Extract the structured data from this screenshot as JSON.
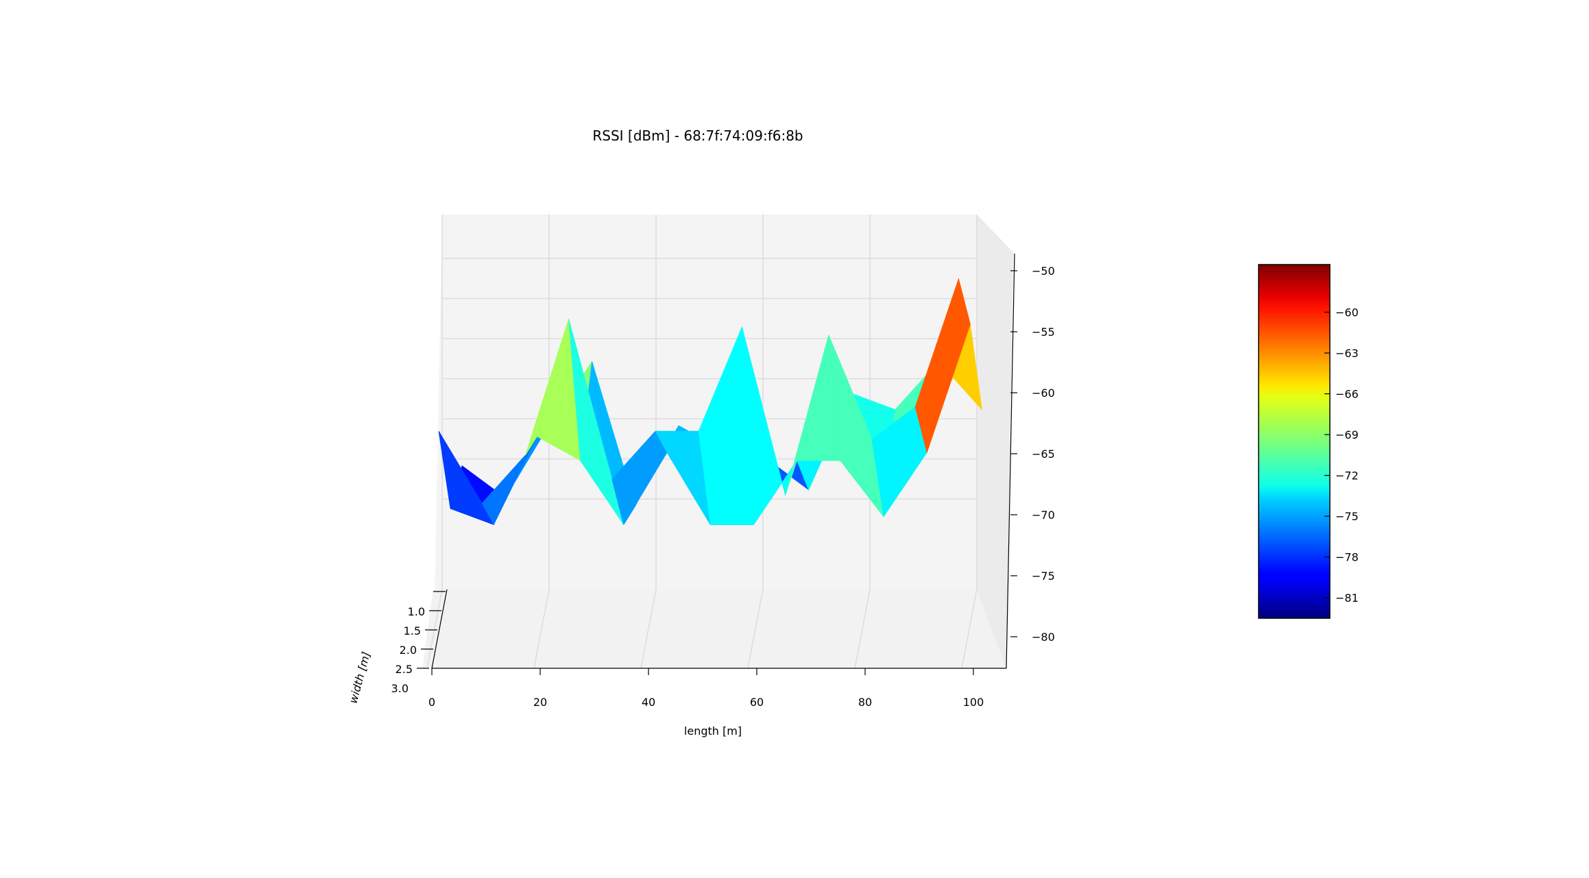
{
  "chart_data": {
    "type": "surface3d",
    "title": "RSSI [dBm] - 68:7f:74:09:f6:8b",
    "xlabel": "length [m]",
    "ylabel": "width [m]",
    "zlabel": "",
    "x": [
      0,
      8,
      16,
      24,
      32,
      40,
      48,
      56,
      64,
      72,
      80,
      88,
      96
    ],
    "y_front": 3.0,
    "y_back": 1.0,
    "series": [
      {
        "values": [
          -70,
          -79,
          -73,
          -56,
          -76,
          -70,
          -70,
          -57,
          -78,
          -58,
          -71,
          -67,
          -51
        ]
      },
      {
        "values": [
          -80,
          -82,
          -71,
          -74,
          -82,
          -73,
          -82,
          -82,
          -74,
          -74,
          -81,
          -73,
          -57
        ]
      },
      {
        "values": [
          -75,
          -79,
          -70,
          -62,
          -80,
          -70,
          -73,
          -74,
          -78,
          -66,
          -68,
          -62,
          -68
        ]
      }
    ],
    "x_ticks": [
      "0",
      "20",
      "40",
      "60",
      "80",
      "100"
    ],
    "y_ticks": [
      "1.0",
      "1.5",
      "2.0",
      "2.5",
      "3.0"
    ],
    "z_ticks": [
      "−50",
      "−55",
      "−60",
      "−65",
      "−70",
      "−75",
      "−80"
    ],
    "colorbar": {
      "min": -82.5,
      "max": -56.5,
      "ticks": [
        "−60",
        "−63",
        "−66",
        "−69",
        "−72",
        "−75",
        "−78",
        "−81"
      ],
      "colormap": "jet"
    },
    "grid": true
  }
}
